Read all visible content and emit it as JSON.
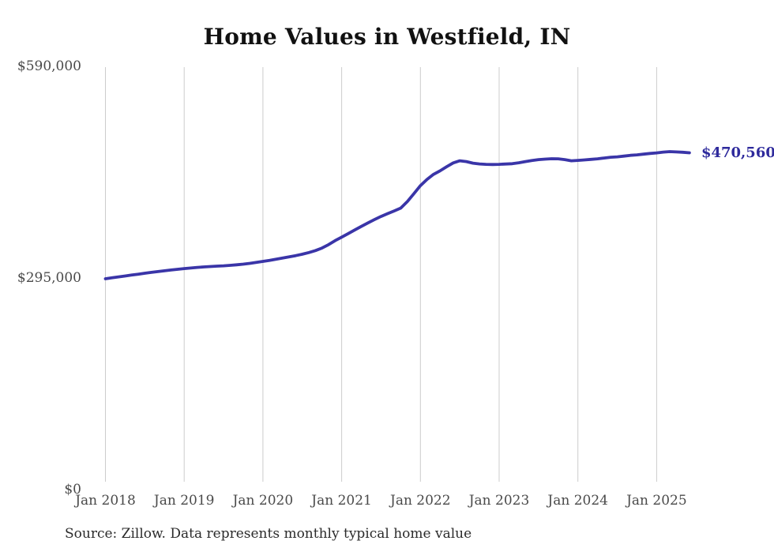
{
  "title": "Home Values in Westfield, IN",
  "source_note": "Source: Zillow. Data represents monthly typical home value",
  "end_label": "$470,560",
  "colors": {
    "line": "#3a35a8",
    "end_label": "#2e2a9c",
    "gridline": "#cccccc",
    "axis_text": "#4a4a4a",
    "title_text": "#111111",
    "source_text": "#2b2b2b",
    "background": "#ffffff"
  },
  "chart_data": {
    "type": "line",
    "title": "Home Values in Westfield, IN",
    "xlabel": "",
    "ylabel": "",
    "ylim": [
      0,
      590000
    ],
    "grid": "vertical-only",
    "legend": "none",
    "x_tick_labels": [
      "Jan 2018",
      "Jan 2019",
      "Jan 2020",
      "Jan 2021",
      "Jan 2022",
      "Jan 2023",
      "Jan 2024",
      "Jan 2025"
    ],
    "y_ticks": [
      {
        "label": "$590,000",
        "value": 590000
      },
      {
        "label": "$295,000",
        "value": 295000
      },
      {
        "label": "$0",
        "value": 0
      }
    ],
    "series": [
      {
        "name": "Monthly typical home value",
        "color": "#3a35a8",
        "start_month": "Jan 2018",
        "end_month": "Jun 2025",
        "values": [
          295000,
          296300,
          297600,
          298900,
          300200,
          301400,
          302700,
          303900,
          305000,
          306100,
          307200,
          308200,
          309200,
          310000,
          310800,
          311500,
          312100,
          312600,
          313100,
          313700,
          314500,
          315400,
          316500,
          317800,
          319200,
          320700,
          322300,
          323900,
          325600,
          327300,
          329200,
          331500,
          334300,
          337800,
          342500,
          348200,
          353000,
          358000,
          363000,
          368000,
          372800,
          377400,
          381900,
          385800,
          389600,
          393500,
          402500,
          413500,
          424800,
          433500,
          440500,
          445500,
          451200,
          456500,
          459500,
          458400,
          456200,
          455100,
          454500,
          454300,
          454500,
          454900,
          455400,
          456700,
          458400,
          459900,
          461100,
          461800,
          462300,
          462200,
          461100,
          459400,
          460000,
          460700,
          461400,
          462200,
          463300,
          464400,
          465000,
          466000,
          467000,
          467700,
          468700,
          469700,
          470500,
          471600,
          472200,
          471800,
          471300,
          470560
        ]
      }
    ],
    "end_annotation": {
      "label": "$470,560",
      "value": 470560
    }
  }
}
